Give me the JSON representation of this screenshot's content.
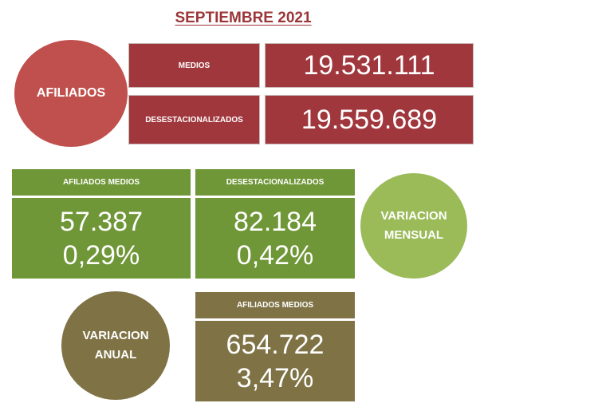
{
  "title": "SEPTIEMBRE 2021",
  "afiliados": {
    "circle_label": "AFILIADOS",
    "rows": [
      {
        "label": "MEDIOS",
        "value": "19.531.111"
      },
      {
        "label": "DESESTACIONALIZADOS",
        "value": "19.559.689"
      }
    ]
  },
  "variacion_mensual": {
    "circle_label": "VARIACION MENSUAL",
    "boxes": [
      {
        "header": "AFILIADOS MEDIOS",
        "value": "57.387",
        "percent": "0,29%"
      },
      {
        "header": "DESESTACIONALIZADOS",
        "value": "82.184",
        "percent": "0,42%"
      }
    ]
  },
  "variacion_anual": {
    "circle_label": "VARIACION ANUAL",
    "boxes": [
      {
        "header": "AFILIADOS MEDIOS",
        "value": "654.722",
        "percent": "3,47%"
      }
    ]
  },
  "colors": {
    "title": "#9b3538",
    "red_circle": "#c0504d",
    "red_box": "#a0373d",
    "green_circle": "#9bbb59",
    "green_box": "#6f9637",
    "olive": "#7f7346"
  }
}
